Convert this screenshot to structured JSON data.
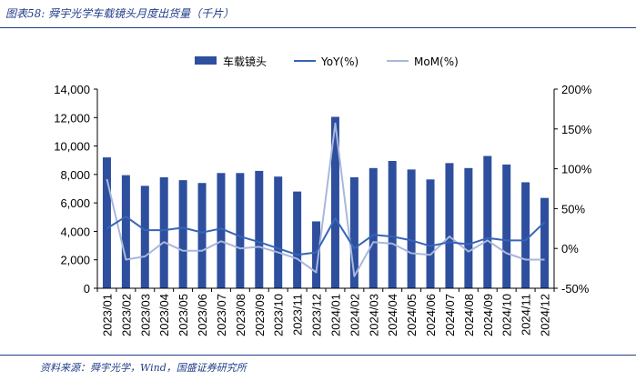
{
  "header": {
    "title": "图表58: 舜宇光学车载镜头月度出货量（千片）"
  },
  "footer": {
    "source": "资料来源：舜宇光学，Wind，国盛证券研究所"
  },
  "colors": {
    "bar": "#2e4f9e",
    "yoy": "#3764b8",
    "mom": "#a9b7dc",
    "rule": "#1f3c88"
  },
  "chart_data": {
    "type": "bar",
    "categories": [
      "2023/01",
      "2023/02",
      "2023/03",
      "2023/04",
      "2023/05",
      "2023/06",
      "2023/07",
      "2023/08",
      "2023/09",
      "2023/10",
      "2023/11",
      "2023/12",
      "2024/01",
      "2024/02",
      "2024/03",
      "2024/04",
      "2024/05",
      "2024/06",
      "2024/07",
      "2024/08",
      "2024/09",
      "2024/10",
      "2024/11",
      "2024/12"
    ],
    "series": [
      {
        "name": "车载镜头",
        "type": "bar",
        "axis": "left",
        "values": [
          9200,
          7950,
          7200,
          7800,
          7600,
          7400,
          8100,
          8100,
          8250,
          7850,
          6800,
          4700,
          12050,
          7800,
          8450,
          8950,
          8350,
          7650,
          8800,
          8450,
          9300,
          8700,
          7450,
          6350
        ]
      },
      {
        "name": "YoY(%)",
        "type": "line",
        "axis": "right",
        "values": [
          25,
          40,
          23,
          23,
          26,
          20,
          25,
          15,
          8,
          0,
          -8,
          -5,
          38,
          0,
          17,
          15,
          10,
          3,
          8,
          5,
          13,
          10,
          10,
          33
        ]
      },
      {
        "name": "MoM(%)",
        "type": "line",
        "axis": "right",
        "values": [
          87,
          -14,
          -10,
          8,
          -3,
          -3,
          9,
          0,
          2,
          -5,
          -13,
          -30,
          157,
          -35,
          8,
          6,
          -6,
          -8,
          15,
          -4,
          10,
          -6,
          -14,
          -14
        ]
      }
    ],
    "y_left": {
      "min": 0,
      "max": 14000,
      "ticks": [
        "0",
        "2,000",
        "4,000",
        "6,000",
        "8,000",
        "10,000",
        "12,000",
        "14,000"
      ]
    },
    "y_right": {
      "min": -50,
      "max": 200,
      "ticks": [
        "-50%",
        "0%",
        "50%",
        "100%",
        "150%",
        "200%"
      ]
    },
    "legend": {
      "position": "top-center",
      "entries": [
        "车载镜头",
        "YoY(%)",
        "MoM(%)"
      ]
    },
    "grid": false
  }
}
